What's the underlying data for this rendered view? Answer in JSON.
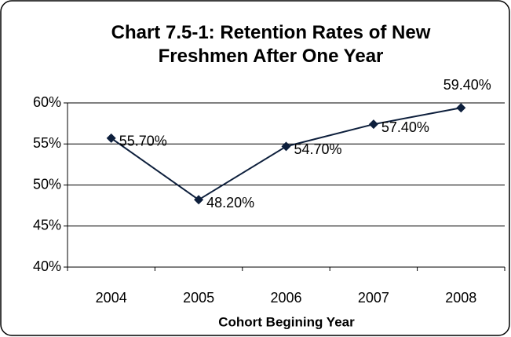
{
  "chart_data": {
    "type": "line",
    "title": "Chart 7.5-1: Retention Rates of New Freshmen After One Year",
    "x_label": "Cohort Begining Year",
    "categories": [
      "2004",
      "2005",
      "2006",
      "2007",
      "2008"
    ],
    "series": [
      {
        "name": "Retention Rate",
        "color": "#0d1f3c",
        "values": [
          55.7,
          48.2,
          54.7,
          57.4,
          59.4
        ],
        "value_labels": [
          "55.70%",
          "48.20%",
          "54.70%",
          "57.40%",
          "59.40%"
        ]
      }
    ],
    "ylim": [
      40,
      60
    ],
    "yticks": [
      {
        "value": 40,
        "label": "40%"
      },
      {
        "value": 45,
        "label": "45%"
      },
      {
        "value": 50,
        "label": "50%"
      },
      {
        "value": 55,
        "label": "55%"
      },
      {
        "value": 60,
        "label": "60%"
      }
    ],
    "grid": true
  }
}
